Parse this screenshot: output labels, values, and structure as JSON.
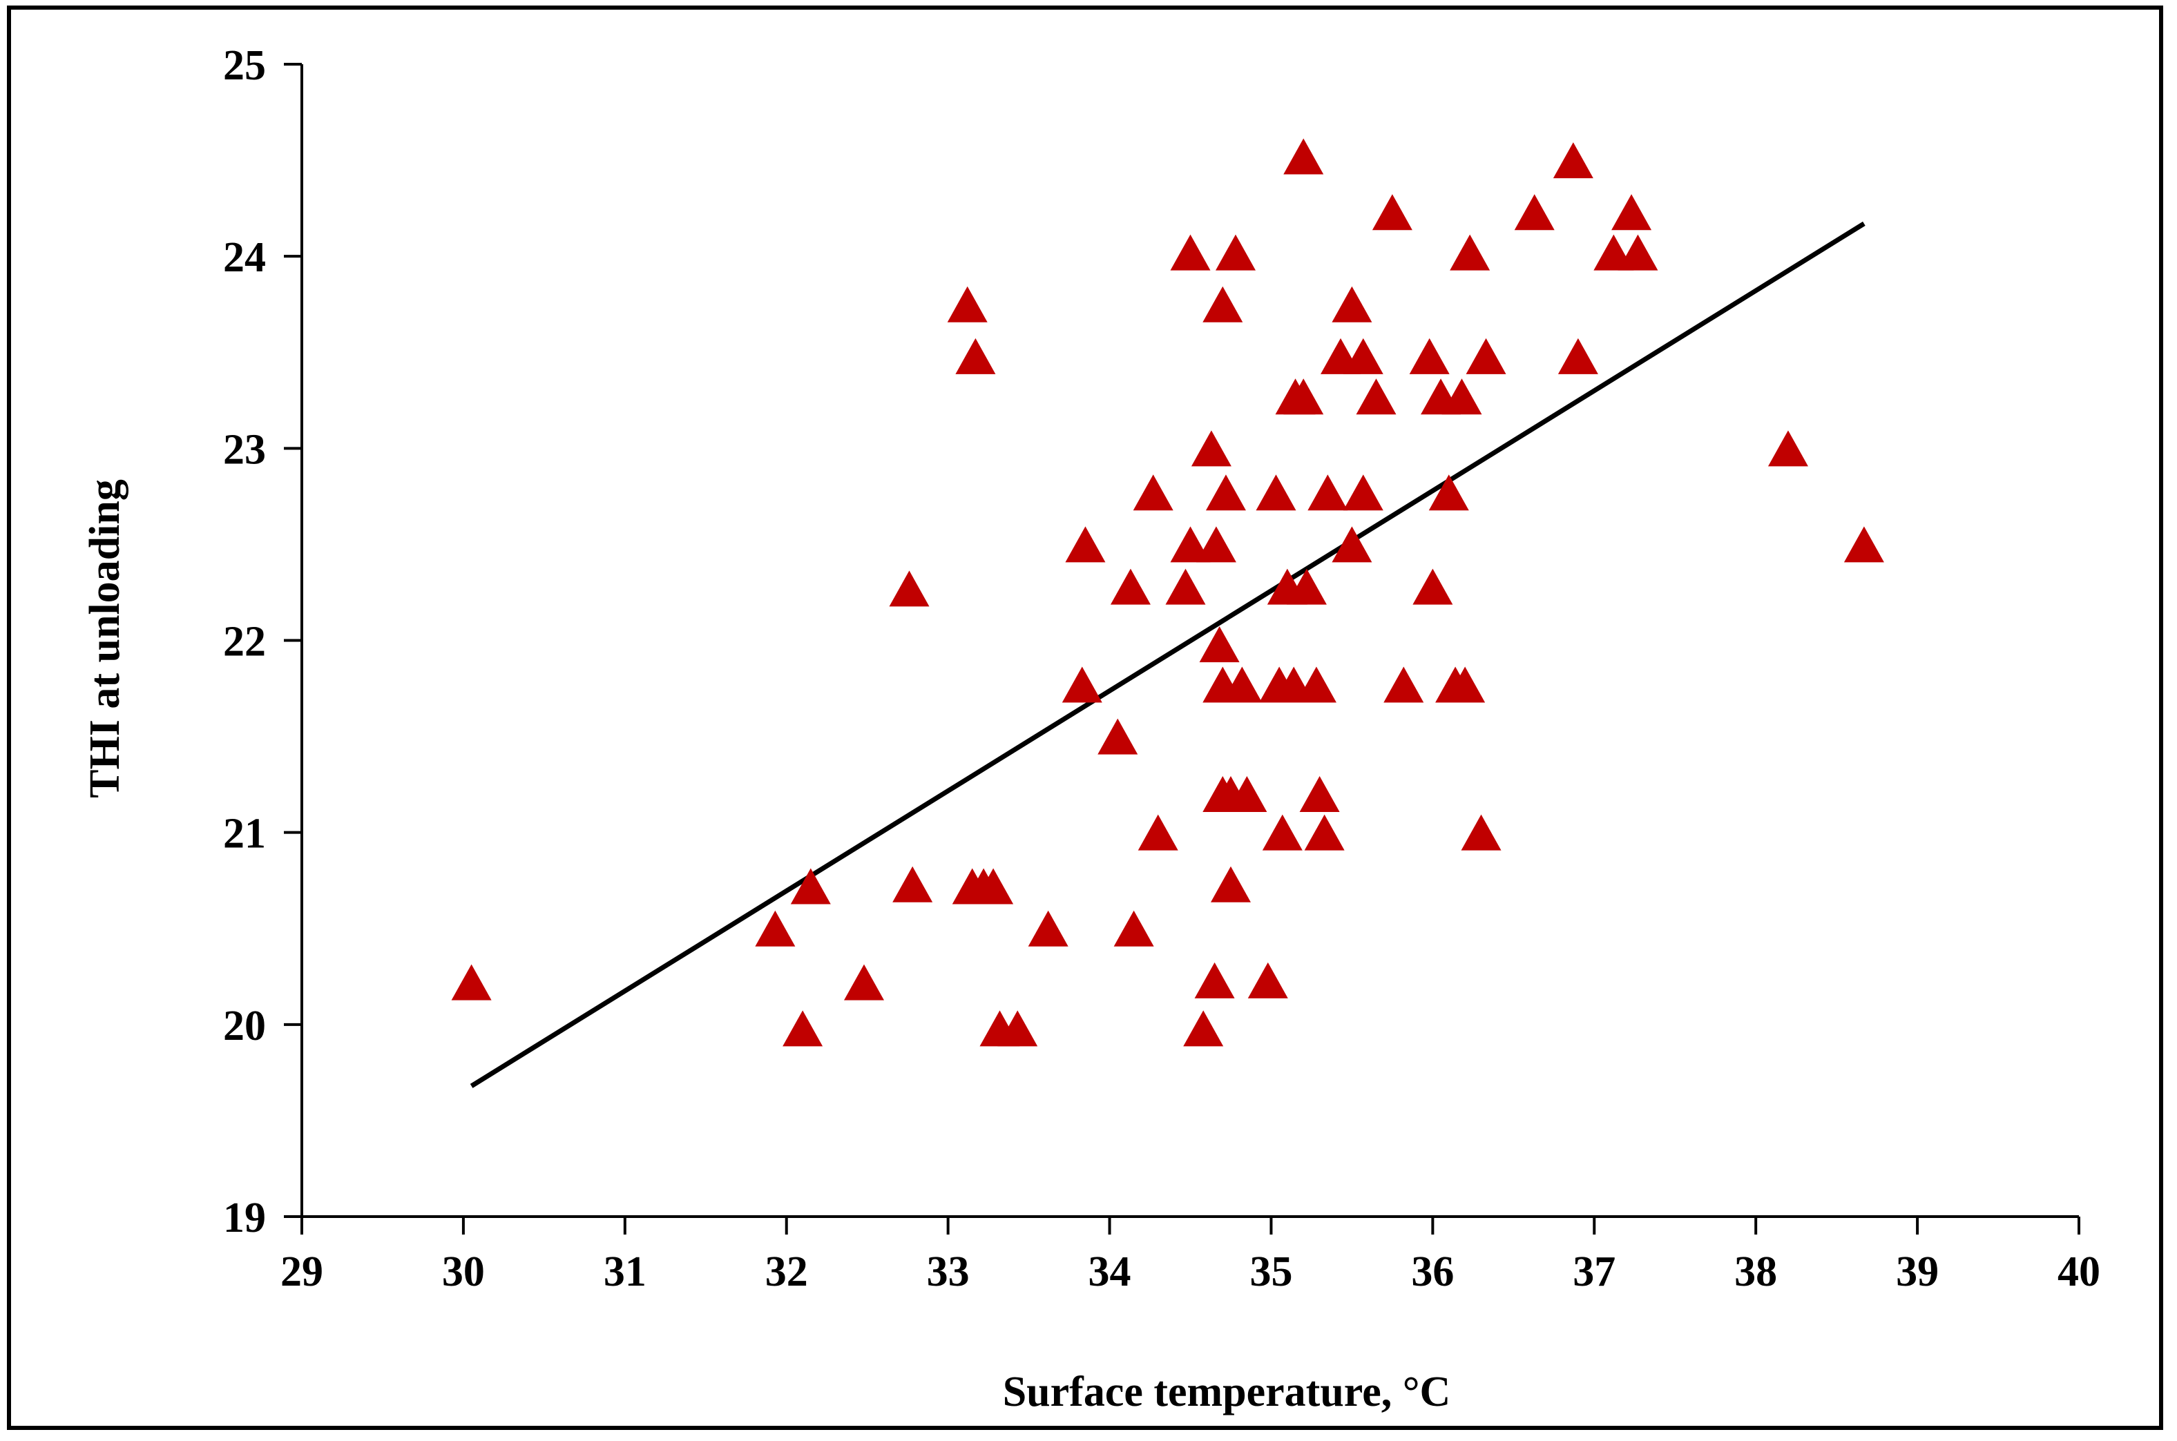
{
  "chart_data": {
    "type": "scatter",
    "xlabel": "Surface temperature, °C",
    "ylabel": "THI at unloading",
    "xlim": [
      29,
      40
    ],
    "ylim": [
      19,
      25
    ],
    "x_ticks": [
      "29",
      "30",
      "31",
      "32",
      "33",
      "34",
      "35",
      "36",
      "37",
      "38",
      "39",
      "40"
    ],
    "y_ticks": [
      "19",
      "20",
      "21",
      "22",
      "23",
      "24",
      "25"
    ],
    "grid": false,
    "marker": "triangle",
    "marker_color": "#C00000",
    "line_color": "#000000",
    "series": [
      {
        "points": [
          [
            30.05,
            20.22
          ],
          [
            31.93,
            20.5
          ],
          [
            32.1,
            19.98
          ],
          [
            32.15,
            20.72
          ],
          [
            32.48,
            20.22
          ],
          [
            32.76,
            22.27
          ],
          [
            32.78,
            20.73
          ],
          [
            33.12,
            23.75
          ],
          [
            33.17,
            23.48
          ],
          [
            33.15,
            20.72
          ],
          [
            33.22,
            20.72
          ],
          [
            33.28,
            20.72
          ],
          [
            33.32,
            19.98
          ],
          [
            33.43,
            19.98
          ],
          [
            33.62,
            20.5
          ],
          [
            33.83,
            21.77
          ],
          [
            33.85,
            22.5
          ],
          [
            34.05,
            21.5
          ],
          [
            34.13,
            22.28
          ],
          [
            34.15,
            20.5
          ],
          [
            34.27,
            22.77
          ],
          [
            34.3,
            21.0
          ],
          [
            34.47,
            22.28
          ],
          [
            34.5,
            22.5
          ],
          [
            34.5,
            24.02
          ],
          [
            34.58,
            19.98
          ],
          [
            34.63,
            23.0
          ],
          [
            34.65,
            20.23
          ],
          [
            34.66,
            22.5
          ],
          [
            34.68,
            21.98
          ],
          [
            34.7,
            23.75
          ],
          [
            34.7,
            21.77
          ],
          [
            34.72,
            22.77
          ],
          [
            34.7,
            21.2
          ],
          [
            34.75,
            21.2
          ],
          [
            34.75,
            20.73
          ],
          [
            34.78,
            24.02
          ],
          [
            34.82,
            21.77
          ],
          [
            34.85,
            21.2
          ],
          [
            34.98,
            20.23
          ],
          [
            35.03,
            22.77
          ],
          [
            35.05,
            21.77
          ],
          [
            35.07,
            21.0
          ],
          [
            35.1,
            22.28
          ],
          [
            35.14,
            21.77
          ],
          [
            35.15,
            23.27
          ],
          [
            35.2,
            24.52
          ],
          [
            35.2,
            23.27
          ],
          [
            35.22,
            22.28
          ],
          [
            35.28,
            21.77
          ],
          [
            35.3,
            21.2
          ],
          [
            35.33,
            21.0
          ],
          [
            35.35,
            22.77
          ],
          [
            35.43,
            23.48
          ],
          [
            35.5,
            23.75
          ],
          [
            35.5,
            22.5
          ],
          [
            35.57,
            23.48
          ],
          [
            35.57,
            22.77
          ],
          [
            35.65,
            23.27
          ],
          [
            35.75,
            24.23
          ],
          [
            35.82,
            21.77
          ],
          [
            35.98,
            23.48
          ],
          [
            36.0,
            22.28
          ],
          [
            36.05,
            23.27
          ],
          [
            36.1,
            22.77
          ],
          [
            36.14,
            21.77
          ],
          [
            36.18,
            23.27
          ],
          [
            36.2,
            21.77
          ],
          [
            36.23,
            24.02
          ],
          [
            36.3,
            21.0
          ],
          [
            36.33,
            23.48
          ],
          [
            36.63,
            24.23
          ],
          [
            36.87,
            24.5
          ],
          [
            36.9,
            23.48
          ],
          [
            37.12,
            24.02
          ],
          [
            37.23,
            24.23
          ],
          [
            37.27,
            24.02
          ],
          [
            38.2,
            23.0
          ],
          [
            38.67,
            22.5
          ]
        ]
      }
    ],
    "trendline": [
      [
        30.05,
        19.68
      ],
      [
        38.67,
        24.17
      ]
    ]
  }
}
